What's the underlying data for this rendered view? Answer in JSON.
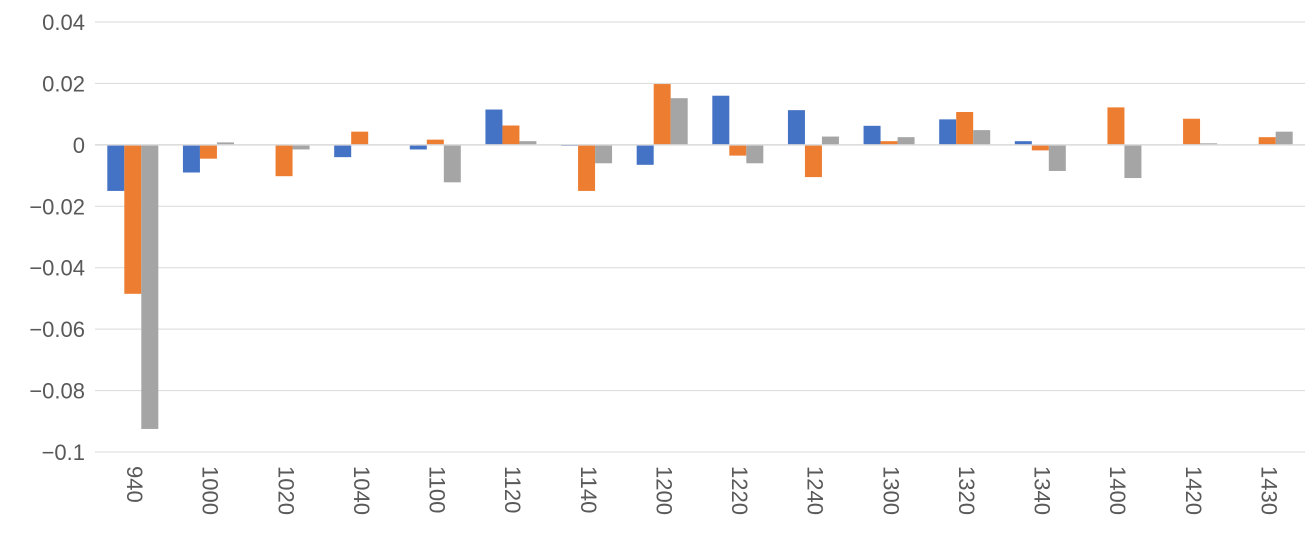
{
  "chart_data": {
    "type": "bar",
    "title": "",
    "xlabel": "",
    "ylabel": "",
    "categories": [
      "940",
      "1000",
      "1020",
      "1040",
      "1100",
      "1120",
      "1140",
      "1200",
      "1220",
      "1240",
      "1300",
      "1320",
      "1340",
      "1400",
      "1420",
      "1430"
    ],
    "series": [
      {
        "color": "#4472c4",
        "values": [
          -0.015,
          -0.009,
          0,
          -0.004,
          -0.0015,
          0.0115,
          -0.0003,
          -0.0065,
          0.016,
          0.0113,
          0.0062,
          0.0083,
          0.0012,
          0,
          0,
          0
        ]
      },
      {
        "color": "#ed7d31",
        "values": [
          -0.0485,
          -0.0045,
          -0.0102,
          0.0043,
          0.0017,
          0.0063,
          -0.015,
          0.0198,
          -0.0035,
          -0.0105,
          0.0012,
          0.0107,
          -0.0018,
          0.0122,
          0.0085,
          0.0025
        ]
      },
      {
        "color": "#a5a5a5",
        "values": [
          -0.0925,
          0.0008,
          -0.0015,
          0,
          -0.0122,
          0.0012,
          -0.006,
          0.0152,
          -0.006,
          0.0027,
          0.0025,
          0.0048,
          -0.0085,
          -0.0108,
          0.0005,
          0.0043
        ]
      }
    ],
    "ylim": [
      -0.1,
      0.04
    ],
    "y_ticks": [
      0.04,
      0.02,
      0,
      -0.02,
      -0.04,
      -0.06,
      -0.08,
      -0.1
    ],
    "y_tick_labels": [
      "0.04",
      "0.02",
      "0",
      "−0.02",
      "−0.04",
      "−0.06",
      "−0.08",
      "−0.1"
    ],
    "grid": true,
    "legend": "none",
    "x_tick_orientation": "rotated-vertical"
  }
}
